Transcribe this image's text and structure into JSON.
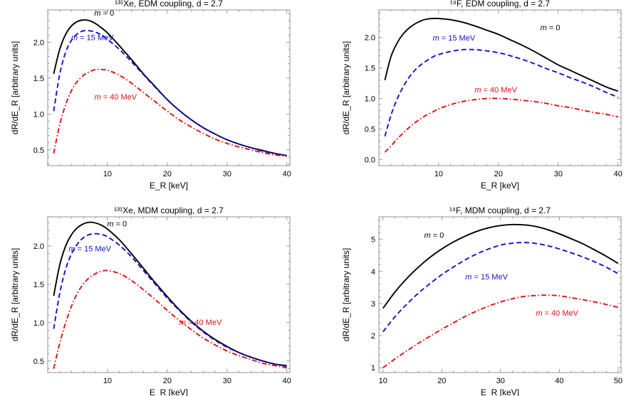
{
  "chart_data": [
    {
      "type": "line",
      "title": "¹³¹Xe, EDM coupling, d = 2.7",
      "xlabel": "E_R [keV]",
      "ylabel": "dR/dE_R [arbitrary units]",
      "xlim": [
        0,
        40.5
      ],
      "ylim": [
        0.28,
        2.45
      ],
      "xticks": [
        10,
        20,
        30,
        40
      ],
      "yticks": [
        0.5,
        1.0,
        1.5,
        2.0
      ],
      "grid": false,
      "series": [
        {
          "name": "m = 0",
          "color": "#000000",
          "style": "solid",
          "x": [
            1,
            2,
            3,
            4,
            5,
            6,
            7,
            8,
            9,
            10,
            12,
            14,
            16,
            18,
            20,
            22,
            24,
            26,
            28,
            30,
            32,
            34,
            36,
            38,
            40
          ],
          "y": [
            1.56,
            1.9,
            2.11,
            2.23,
            2.29,
            2.31,
            2.3,
            2.26,
            2.2,
            2.13,
            1.95,
            1.76,
            1.56,
            1.38,
            1.2,
            1.05,
            0.92,
            0.81,
            0.72,
            0.64,
            0.58,
            0.53,
            0.49,
            0.45,
            0.42
          ]
        },
        {
          "name": "m = 15 MeV",
          "color": "#1111cc",
          "style": "dashed",
          "x": [
            1,
            2,
            3,
            4,
            5,
            6,
            7,
            8,
            9,
            10,
            12,
            14,
            16,
            18,
            20,
            22,
            24,
            26,
            28,
            30,
            32,
            34,
            36,
            38,
            40
          ],
          "y": [
            1.04,
            1.55,
            1.86,
            2.03,
            2.12,
            2.16,
            2.16,
            2.14,
            2.1,
            2.04,
            1.9,
            1.73,
            1.55,
            1.37,
            1.2,
            1.05,
            0.92,
            0.81,
            0.72,
            0.64,
            0.58,
            0.53,
            0.48,
            0.45,
            0.42
          ]
        },
        {
          "name": "m = 40 MeV",
          "color": "#dd1111",
          "style": "dashdot",
          "x": [
            1,
            2,
            3,
            4,
            5,
            6,
            7,
            8,
            9,
            10,
            12,
            14,
            16,
            18,
            20,
            22,
            24,
            26,
            28,
            30,
            32,
            34,
            36,
            38,
            40
          ],
          "y": [
            0.45,
            0.85,
            1.13,
            1.33,
            1.46,
            1.54,
            1.59,
            1.62,
            1.62,
            1.61,
            1.54,
            1.43,
            1.3,
            1.17,
            1.04,
            0.92,
            0.82,
            0.73,
            0.65,
            0.59,
            0.54,
            0.5,
            0.46,
            0.43,
            0.41
          ]
        }
      ]
    },
    {
      "type": "line",
      "title": "¹⁹F, EDM coupling, d = 2.7",
      "xlabel": "E_R [keV]",
      "ylabel": "dR/dE_R [arbitrary units]",
      "xlim": [
        0,
        40.5
      ],
      "ylim": [
        -0.1,
        2.45
      ],
      "xticks": [
        10,
        20,
        30,
        40
      ],
      "yticks": [
        0.0,
        0.5,
        1.0,
        1.5,
        2.0
      ],
      "grid": false,
      "series": [
        {
          "name": "m = 0",
          "color": "#000000",
          "style": "solid",
          "x": [
            1,
            2,
            3,
            4,
            5,
            6,
            7,
            8,
            9,
            10,
            12,
            14,
            16,
            18,
            20,
            22,
            24,
            26,
            28,
            30,
            32,
            34,
            36,
            38,
            40
          ],
          "y": [
            1.3,
            1.68,
            1.9,
            2.05,
            2.15,
            2.22,
            2.27,
            2.3,
            2.31,
            2.31,
            2.29,
            2.25,
            2.19,
            2.12,
            2.05,
            1.96,
            1.87,
            1.77,
            1.66,
            1.55,
            1.46,
            1.37,
            1.28,
            1.19,
            1.12
          ]
        },
        {
          "name": "m = 15 MeV",
          "color": "#1111cc",
          "style": "dashed",
          "x": [
            1,
            2,
            3,
            4,
            5,
            6,
            7,
            8,
            9,
            10,
            12,
            14,
            16,
            18,
            20,
            22,
            24,
            26,
            28,
            30,
            32,
            34,
            36,
            38,
            40
          ],
          "y": [
            0.38,
            0.72,
            0.98,
            1.18,
            1.34,
            1.46,
            1.55,
            1.62,
            1.68,
            1.72,
            1.77,
            1.8,
            1.8,
            1.78,
            1.75,
            1.7,
            1.64,
            1.57,
            1.49,
            1.42,
            1.34,
            1.27,
            1.19,
            1.1,
            1.02
          ]
        },
        {
          "name": "m = 40 MeV",
          "color": "#dd1111",
          "style": "dashdot",
          "x": [
            1,
            2,
            3,
            4,
            5,
            6,
            7,
            8,
            9,
            10,
            12,
            14,
            16,
            18,
            20,
            22,
            24,
            26,
            28,
            30,
            32,
            34,
            36,
            38,
            40
          ],
          "y": [
            0.12,
            0.22,
            0.33,
            0.43,
            0.52,
            0.6,
            0.67,
            0.73,
            0.78,
            0.83,
            0.9,
            0.95,
            0.98,
            1.0,
            1.0,
            0.99,
            0.97,
            0.95,
            0.92,
            0.88,
            0.85,
            0.81,
            0.77,
            0.74,
            0.7
          ]
        }
      ]
    },
    {
      "type": "line",
      "title": "¹³¹Xe, MDM coupling, d = 2.7",
      "xlabel": "E_R [keV]",
      "ylabel": "dR/dE_R [arbitrary units]",
      "xlim": [
        0,
        40.5
      ],
      "ylim": [
        0.35,
        2.38
      ],
      "xticks": [
        10,
        20,
        30,
        40
      ],
      "yticks": [
        0.5,
        1.0,
        1.5,
        2.0
      ],
      "grid": false,
      "series": [
        {
          "name": "m = 0",
          "color": "#000000",
          "style": "solid",
          "x": [
            1,
            2,
            3,
            4,
            5,
            6,
            7,
            8,
            9,
            10,
            12,
            14,
            16,
            18,
            20,
            22,
            24,
            26,
            28,
            30,
            32,
            34,
            36,
            38,
            40
          ],
          "y": [
            1.35,
            1.75,
            2.0,
            2.15,
            2.24,
            2.29,
            2.31,
            2.3,
            2.27,
            2.22,
            2.08,
            1.9,
            1.71,
            1.52,
            1.34,
            1.17,
            1.02,
            0.89,
            0.78,
            0.69,
            0.61,
            0.55,
            0.5,
            0.46,
            0.44
          ]
        },
        {
          "name": "m = 15 MeV",
          "color": "#1111cc",
          "style": "dashed",
          "x": [
            1,
            2,
            3,
            4,
            5,
            6,
            7,
            8,
            9,
            10,
            12,
            14,
            16,
            18,
            20,
            22,
            24,
            26,
            28,
            30,
            32,
            34,
            36,
            38,
            40
          ],
          "y": [
            0.92,
            1.38,
            1.7,
            1.9,
            2.03,
            2.11,
            2.15,
            2.16,
            2.15,
            2.12,
            2.01,
            1.86,
            1.68,
            1.5,
            1.32,
            1.16,
            1.01,
            0.88,
            0.77,
            0.68,
            0.61,
            0.55,
            0.5,
            0.46,
            0.43
          ]
        },
        {
          "name": "m = 40 MeV",
          "color": "#dd1111",
          "style": "dashdot",
          "x": [
            1,
            2,
            3,
            4,
            5,
            6,
            7,
            8,
            9,
            10,
            12,
            14,
            16,
            18,
            20,
            22,
            24,
            26,
            28,
            30,
            32,
            34,
            36,
            38,
            40
          ],
          "y": [
            0.4,
            0.73,
            1.0,
            1.22,
            1.39,
            1.51,
            1.59,
            1.64,
            1.67,
            1.68,
            1.64,
            1.55,
            1.43,
            1.3,
            1.16,
            1.03,
            0.91,
            0.8,
            0.71,
            0.63,
            0.57,
            0.52,
            0.47,
            0.44,
            0.41
          ]
        }
      ]
    },
    {
      "type": "line",
      "title": "¹⁹F, MDM coupling, d = 2.7",
      "xlabel": "E_R [keV]",
      "ylabel": "dR/dE_R [arbitrary units]",
      "xlim": [
        9.3,
        50.5
      ],
      "ylim": [
        0.85,
        5.7
      ],
      "xticks": [
        10,
        20,
        30,
        40,
        50
      ],
      "yticks": [
        1,
        2,
        3,
        4,
        5
      ],
      "grid": false,
      "series": [
        {
          "name": "m = 0",
          "color": "#000000",
          "style": "solid",
          "x": [
            10,
            12,
            14,
            16,
            18,
            20,
            22,
            24,
            26,
            28,
            30,
            32,
            34,
            36,
            38,
            40,
            42,
            44,
            46,
            48,
            50
          ],
          "y": [
            2.85,
            3.35,
            3.77,
            4.13,
            4.44,
            4.7,
            4.92,
            5.1,
            5.25,
            5.36,
            5.43,
            5.46,
            5.45,
            5.4,
            5.3,
            5.17,
            5.02,
            4.86,
            4.67,
            4.47,
            4.25
          ]
        },
        {
          "name": "m = 15 MeV",
          "color": "#1111cc",
          "style": "dashed",
          "x": [
            10,
            12,
            14,
            16,
            18,
            20,
            22,
            24,
            26,
            28,
            30,
            32,
            34,
            36,
            38,
            40,
            42,
            44,
            46,
            48,
            50
          ],
          "y": [
            2.12,
            2.58,
            2.97,
            3.32,
            3.62,
            3.9,
            4.14,
            4.36,
            4.55,
            4.7,
            4.82,
            4.88,
            4.9,
            4.87,
            4.8,
            4.7,
            4.58,
            4.45,
            4.3,
            4.13,
            3.93
          ]
        },
        {
          "name": "m = 40 MeV",
          "color": "#dd1111",
          "style": "dashdot",
          "x": [
            10,
            12,
            14,
            16,
            18,
            20,
            22,
            24,
            26,
            28,
            30,
            32,
            34,
            36,
            38,
            40,
            42,
            44,
            46,
            48,
            50
          ],
          "y": [
            1.0,
            1.27,
            1.52,
            1.76,
            1.98,
            2.2,
            2.4,
            2.6,
            2.77,
            2.92,
            3.05,
            3.15,
            3.22,
            3.25,
            3.26,
            3.24,
            3.18,
            3.12,
            3.05,
            2.97,
            2.88
          ]
        }
      ]
    }
  ]
}
